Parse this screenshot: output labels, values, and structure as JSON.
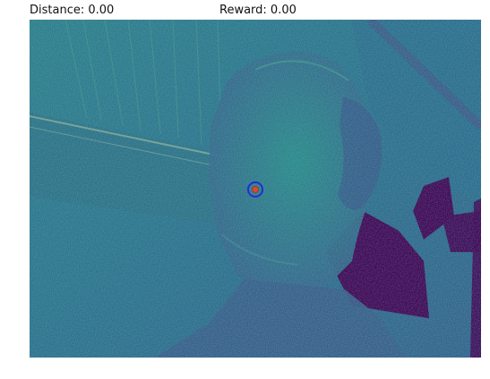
{
  "hud": {
    "distance_label": "Distance: 0.00",
    "reward_label": "Reward: 0.00"
  },
  "observation": {
    "colormap": "viridis-like",
    "colors": {
      "dark_purple": "#440154",
      "teal": "#26828e",
      "blue_teal": "#31688e",
      "green_teal": "#35b779"
    }
  },
  "target_marker": {
    "outer_ring_color": "#1f2fd6",
    "center_color": "#d24c3a"
  }
}
